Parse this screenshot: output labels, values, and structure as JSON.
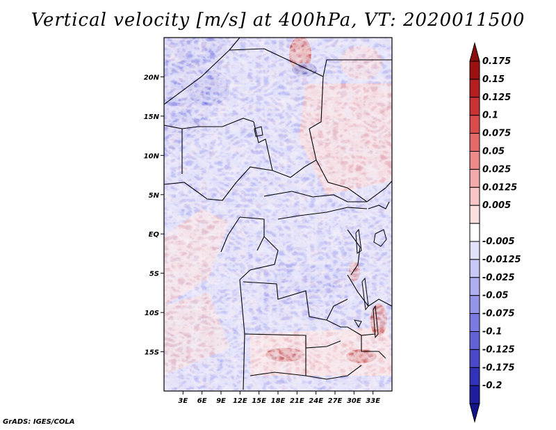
{
  "title": "Vertical velocity [m/s] at 400hPa, VT: 2020011500",
  "credit": "GrADS: IGES/COLA",
  "map": {
    "lon_range": [
      0,
      36
    ],
    "lat_range": [
      -20,
      25
    ],
    "lat_ticks": [
      {
        "lat": 20,
        "label": "20N"
      },
      {
        "lat": 15,
        "label": "15N"
      },
      {
        "lat": 10,
        "label": "10N"
      },
      {
        "lat": 5,
        "label": "5N"
      },
      {
        "lat": 0,
        "label": "EQ"
      },
      {
        "lat": -5,
        "label": "5S"
      },
      {
        "lat": -10,
        "label": "10S"
      },
      {
        "lat": -15,
        "label": "15S"
      }
    ],
    "lon_ticks": [
      {
        "lon": 3,
        "label": "3E"
      },
      {
        "lon": 6,
        "label": "6E"
      },
      {
        "lon": 9,
        "label": "9E"
      },
      {
        "lon": 12,
        "label": "12E"
      },
      {
        "lon": 15,
        "label": "15E"
      },
      {
        "lon": 18,
        "label": "18E"
      },
      {
        "lon": 21,
        "label": "21E"
      },
      {
        "lon": 24,
        "label": "24E"
      },
      {
        "lon": 27,
        "label": "27E"
      },
      {
        "lon": 30,
        "label": "30E"
      },
      {
        "lon": 33,
        "label": "33E"
      }
    ]
  },
  "colorbar": {
    "levels": [
      {
        "label": "0.175",
        "color": "#9b1010"
      },
      {
        "label": "0.15",
        "color": "#b51e1e"
      },
      {
        "label": "0.125",
        "color": "#c83232"
      },
      {
        "label": "0.1",
        "color": "#d84c4c"
      },
      {
        "label": "0.075",
        "color": "#e46a6a"
      },
      {
        "label": "0.05",
        "color": "#ee8a8a"
      },
      {
        "label": "0.025",
        "color": "#f4aaaa"
      },
      {
        "label": "0.0125",
        "color": "#f8c6c6"
      },
      {
        "label": "0.005",
        "color": "#fbe0e0"
      },
      {
        "label": "",
        "color": "#ffffff"
      },
      {
        "label": "-0.005",
        "color": "#e2e2fa"
      },
      {
        "label": "-0.0125",
        "color": "#c8c8f4"
      },
      {
        "label": "-0.025",
        "color": "#aeaef0"
      },
      {
        "label": "-0.05",
        "color": "#9494ea"
      },
      {
        "label": "-0.075",
        "color": "#7a7ae2"
      },
      {
        "label": "-0.1",
        "color": "#6262d6"
      },
      {
        "label": "-0.125",
        "color": "#4a4ac8"
      },
      {
        "label": "-0.175",
        "color": "#3232b8"
      },
      {
        "label": "-0.2",
        "color": "#1e1e9c"
      }
    ],
    "top_color": "#8b0e0e",
    "bottom_color": "#14148a"
  }
}
